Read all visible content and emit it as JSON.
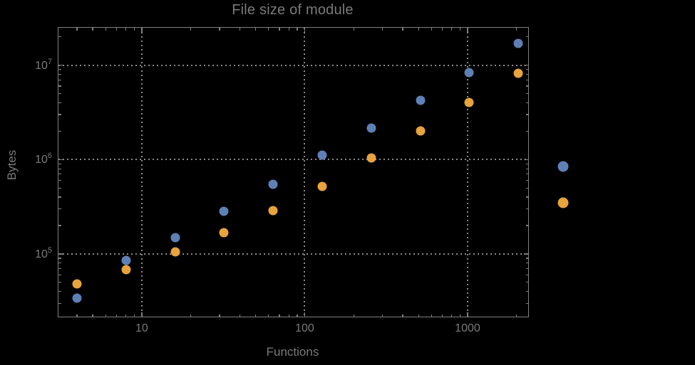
{
  "chart": {
    "title": "File size of module",
    "xlabel": "Functions",
    "ylabel": "Bytes"
  },
  "chart_data": {
    "type": "scatter",
    "title": "File size of module",
    "xlabel": "Functions",
    "ylabel": "Bytes",
    "x_scale": "log",
    "y_scale": "log",
    "grid": "dotted lines at decade ticks, on",
    "legend_position": "outside-right, color markers only (no visible label text)",
    "xlim": [
      3.08,
      2355
    ],
    "ylim": [
      21700,
      24900000
    ],
    "x": [
      4,
      8,
      16,
      32,
      64,
      128,
      256,
      512,
      1024,
      2048
    ],
    "series": [
      {
        "name": "",
        "color": "#5E81B5",
        "values": [
          34000,
          85000,
          149000,
          284000,
          549000,
          1120000,
          2170000,
          4270000,
          8400000,
          16900000
        ]
      },
      {
        "name": "",
        "color": "#E8A33D",
        "values": [
          48500,
          68000,
          105000,
          168000,
          289000,
          521000,
          1040000,
          2020000,
          4050000,
          8200000
        ]
      }
    ],
    "x_ticks": [
      {
        "value": 10,
        "label": "10"
      },
      {
        "value": 100,
        "label": "100"
      },
      {
        "value": 1000,
        "label": "1000"
      }
    ],
    "y_ticks": [
      {
        "value": 100000,
        "base": "10",
        "exp": "5"
      },
      {
        "value": 1000000,
        "base": "10",
        "exp": "6"
      },
      {
        "value": 10000000,
        "base": "10",
        "exp": "7"
      }
    ]
  },
  "colors": {
    "background": "#000000",
    "frame": "#7f7f7f",
    "grid": "#8a8a8a",
    "text": "#7a7a7a"
  }
}
